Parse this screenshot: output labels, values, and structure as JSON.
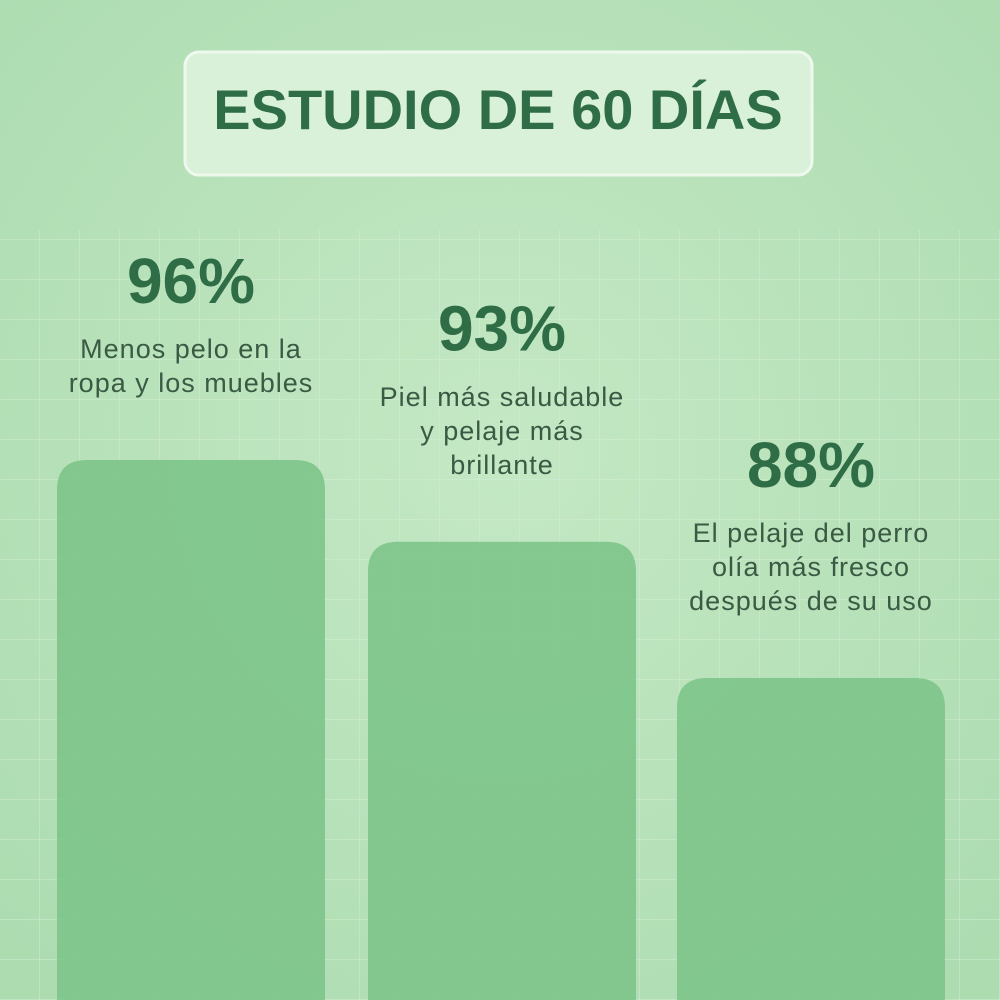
{
  "chart_data": {
    "type": "bar",
    "title": "ESTUDIO DE 60 DÍAS",
    "values": [
      96,
      93,
      88
    ],
    "value_labels": [
      "96%",
      "93%",
      "88%"
    ],
    "descriptions": [
      [
        "Menos pelo en la",
        "ropa y los muebles"
      ],
      [
        "Piel más saludable",
        "y pelaje más",
        "brillante"
      ],
      [
        "El pelaje del perro",
        "olía más fresco",
        "después de su uso"
      ]
    ],
    "color": "#7dc489"
  }
}
